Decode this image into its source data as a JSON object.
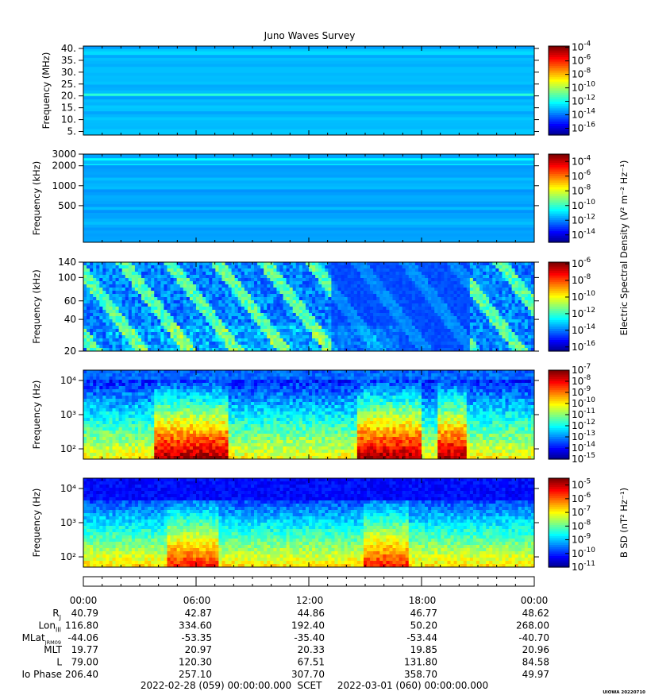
{
  "title": "Juno Waves Survey",
  "footer": {
    "start": "2022-02-28 (059) 00:00:00.000",
    "mid": "SCET",
    "end": "2022-03-01 (060) 00:00:00.000",
    "stamp": "UIOWA 20220710"
  },
  "shared_colorbar_label": "Electric Spectral Density (V² m⁻² Hz⁻¹)",
  "chart_data": [
    {
      "type": "heatmap",
      "ylabel": "Frequency (MHz)",
      "yscale": "linear",
      "ylim": [
        3.5,
        41
      ],
      "yticks": [
        {
          "v": 40,
          "t": "40."
        },
        {
          "v": 35,
          "t": "35."
        },
        {
          "v": 30,
          "t": "30."
        },
        {
          "v": 25,
          "t": "25."
        },
        {
          "v": 20,
          "t": "20."
        },
        {
          "v": 15,
          "t": "15."
        },
        {
          "v": 10,
          "t": "10."
        },
        {
          "v": 5,
          "t": "5."
        }
      ],
      "colorbar": {
        "exp": [
          -4,
          -6,
          -8,
          -10,
          -12,
          -14,
          -16
        ],
        "range": [
          -17,
          -3.8
        ]
      },
      "base_level": -13,
      "bands": [
        {
          "v": 20.5,
          "w": 1.0,
          "level": -11.5
        },
        {
          "v": 38,
          "w": 1.5,
          "level": -12.5
        }
      ]
    },
    {
      "type": "heatmap",
      "ylabel": "Frequency (kHz)",
      "yscale": "log",
      "ylim": [
        140,
        3000
      ],
      "yticks": [
        {
          "v": 3000,
          "t": "3000"
        },
        {
          "v": 2000,
          "t": "2000"
        },
        {
          "v": 1000,
          "t": "1000"
        },
        {
          "v": 500,
          "t": "500"
        }
      ],
      "colorbar": {
        "exp": [
          -4,
          -6,
          -8,
          -10,
          -12,
          -14
        ],
        "range": [
          -15,
          -3
        ]
      },
      "base_level": -11.5,
      "bands": [
        {
          "v": 2500,
          "w": 200,
          "level": -10.5
        },
        {
          "v": 2100,
          "w": 120,
          "level": -10.8
        }
      ]
    },
    {
      "type": "heatmap",
      "ylabel": "Frequency (kHz)",
      "yscale": "log",
      "ylim": [
        20,
        140
      ],
      "yticks": [
        {
          "v": 140,
          "t": "140"
        },
        {
          "v": 100,
          "t": "100"
        },
        {
          "v": 60,
          "t": "60"
        },
        {
          "v": 40,
          "t": "40"
        },
        {
          "v": 20,
          "t": "20"
        }
      ],
      "colorbar": {
        "exp": [
          -6,
          -8,
          -10,
          -12,
          -14,
          -16
        ],
        "range": [
          -16.5,
          -5.8
        ]
      },
      "base_level": -14.5,
      "bands": []
    },
    {
      "type": "heatmap",
      "ylabel": "Frequency (Hz)",
      "yscale": "log",
      "ylim": [
        50,
        20000
      ],
      "yticks": [
        {
          "v": 10000,
          "t": "10⁴"
        },
        {
          "v": 1000,
          "t": "10³"
        },
        {
          "v": 100,
          "t": "10²"
        }
      ],
      "colorbar": {
        "exp": [
          -7,
          -8,
          -9,
          -10,
          -11,
          -12,
          -13,
          -14,
          -15
        ],
        "range": [
          -15,
          -7
        ]
      },
      "base_level": -11,
      "bands": []
    },
    {
      "type": "heatmap",
      "ylabel": "Frequency (Hz)",
      "yscale": "log",
      "ylim": [
        50,
        20000
      ],
      "yticks": [
        {
          "v": 10000,
          "t": "10⁴"
        },
        {
          "v": 1000,
          "t": "10³"
        },
        {
          "v": 100,
          "t": "10²"
        }
      ],
      "colorbar": {
        "exp": [
          -5,
          -6,
          -7,
          -8,
          -9,
          -10,
          -11
        ],
        "range": [
          -11,
          -4.5
        ],
        "label": "B SD (nT² Hz⁻¹)"
      },
      "base_level": -9,
      "bands": []
    }
  ],
  "time_axis": {
    "ticks": [
      "00:00",
      "06:00",
      "12:00",
      "18:00",
      "00:00"
    ],
    "rows": [
      {
        "label": "R",
        "sub": "J",
        "values": [
          "40.79",
          "42.87",
          "44.86",
          "46.77",
          "48.62"
        ]
      },
      {
        "label": "Lon",
        "sub": "III",
        "values": [
          "116.80",
          "334.60",
          "192.40",
          "50.20",
          "268.00"
        ]
      },
      {
        "label": "MLat",
        "sub": "JRM09",
        "values": [
          "-44.06",
          "-53.35",
          "-35.40",
          "-53.44",
          "-40.70"
        ]
      },
      {
        "label": "MLT",
        "sub": "",
        "values": [
          "19.77",
          "20.97",
          "20.33",
          "19.85",
          "20.96"
        ]
      },
      {
        "label": "L",
        "sub": "",
        "values": [
          "79.00",
          "120.30",
          "67.51",
          "131.80",
          "84.58"
        ]
      },
      {
        "label": "Io Phase",
        "sub": "",
        "values": [
          "206.40",
          "257.10",
          "307.70",
          "358.70",
          "49.97"
        ]
      }
    ]
  }
}
